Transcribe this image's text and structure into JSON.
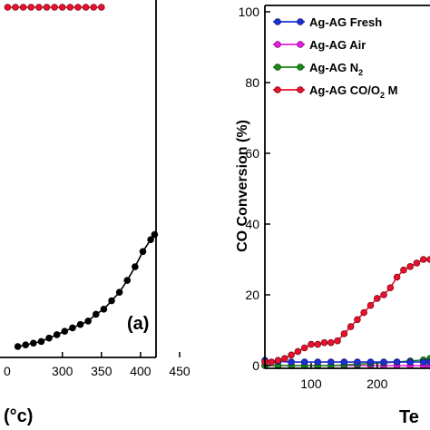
{
  "chart_data": [
    {
      "panel": "(a)",
      "type": "line",
      "x_axis": {
        "ticks": [
          300,
          350,
          400,
          450
        ],
        "tick_labels": [
          "300",
          "350",
          "400",
          "450"
        ],
        "partial_tick_label": "0",
        "unit_fragment": "(°c)",
        "range": [
          230,
          450
        ]
      },
      "y_range": [
        0,
        100
      ],
      "series": [
        {
          "color": "#e8112d",
          "x": [
            230,
            240,
            250,
            260,
            270,
            280,
            290,
            300,
            310,
            320,
            330,
            340,
            350
          ],
          "y": [
            100,
            100,
            100,
            100,
            100,
            100,
            100,
            100,
            100,
            100,
            100,
            100,
            100
          ]
        },
        {
          "color": "#000000",
          "x": [
            243,
            253,
            263,
            273,
            283,
            293,
            303,
            313,
            323,
            333,
            343,
            353,
            363,
            373,
            383,
            393,
            403,
            413,
            418
          ],
          "y": [
            0,
            0.5,
            1,
            1.5,
            2.5,
            3.5,
            4.5,
            5.5,
            6.5,
            7.5,
            9.5,
            11,
            13.5,
            16,
            19.5,
            23.5,
            28,
            31.5,
            33
          ]
        }
      ]
    },
    {
      "type": "line",
      "ylabel": "CO Conversion (%)",
      "xlabel_fragment": "Te",
      "y_axis": {
        "ticks": [
          0,
          20,
          40,
          60,
          80,
          100
        ],
        "tick_labels": [
          "0",
          "20",
          "40",
          "60",
          "80",
          "100"
        ],
        "range": [
          0,
          100
        ]
      },
      "x_axis": {
        "ticks": [
          100,
          200
        ],
        "tick_labels": [
          "100",
          "200"
        ],
        "range": [
          30,
          280
        ]
      },
      "legend_position": "top-left",
      "series": [
        {
          "name": "Ag-AG Fresh",
          "color": "#1f2fd6",
          "x": [
            30,
            50,
            70,
            90,
            110,
            130,
            150,
            170,
            190,
            210,
            230,
            250,
            270,
            280
          ],
          "y": [
            1.5,
            1.2,
            1.0,
            1.0,
            1.0,
            1.0,
            1.0,
            1.0,
            1.0,
            1.0,
            1.0,
            1.0,
            1.0,
            1.0
          ]
        },
        {
          "name": "Ag-AG Air",
          "color": "#e81ce0",
          "x": [
            30,
            50,
            70,
            90,
            110,
            130,
            150,
            170,
            190,
            210,
            230,
            250,
            270,
            280
          ],
          "y": [
            0,
            0,
            0,
            0,
            0,
            0,
            0,
            0,
            0,
            0,
            0,
            0,
            0,
            0
          ]
        },
        {
          "name": "Ag-AG N",
          "name_subscript": "2",
          "color": "#1a8a1a",
          "x": [
            30,
            50,
            70,
            90,
            110,
            130,
            150,
            170,
            190,
            210,
            230,
            250,
            270,
            280
          ],
          "y": [
            0,
            0,
            0,
            0,
            0,
            0,
            0.2,
            0.4,
            0.6,
            0.8,
            1.0,
            1.3,
            1.6,
            2.0
          ]
        },
        {
          "name_parts": [
            "Ag-AG CO/O",
            "2",
            " M"
          ],
          "color": "#e8112d",
          "x": [
            30,
            40,
            50,
            60,
            70,
            80,
            90,
            100,
            110,
            120,
            130,
            140,
            150,
            160,
            170,
            180,
            190,
            200,
            210,
            220,
            230,
            240,
            250,
            260,
            270,
            280
          ],
          "y": [
            1,
            1,
            1.5,
            2,
            3,
            4,
            5,
            6,
            6,
            6.5,
            6.5,
            7,
            9,
            11,
            13,
            15,
            17,
            19,
            20,
            22,
            25,
            27,
            28,
            29,
            30,
            30
          ]
        }
      ]
    }
  ]
}
